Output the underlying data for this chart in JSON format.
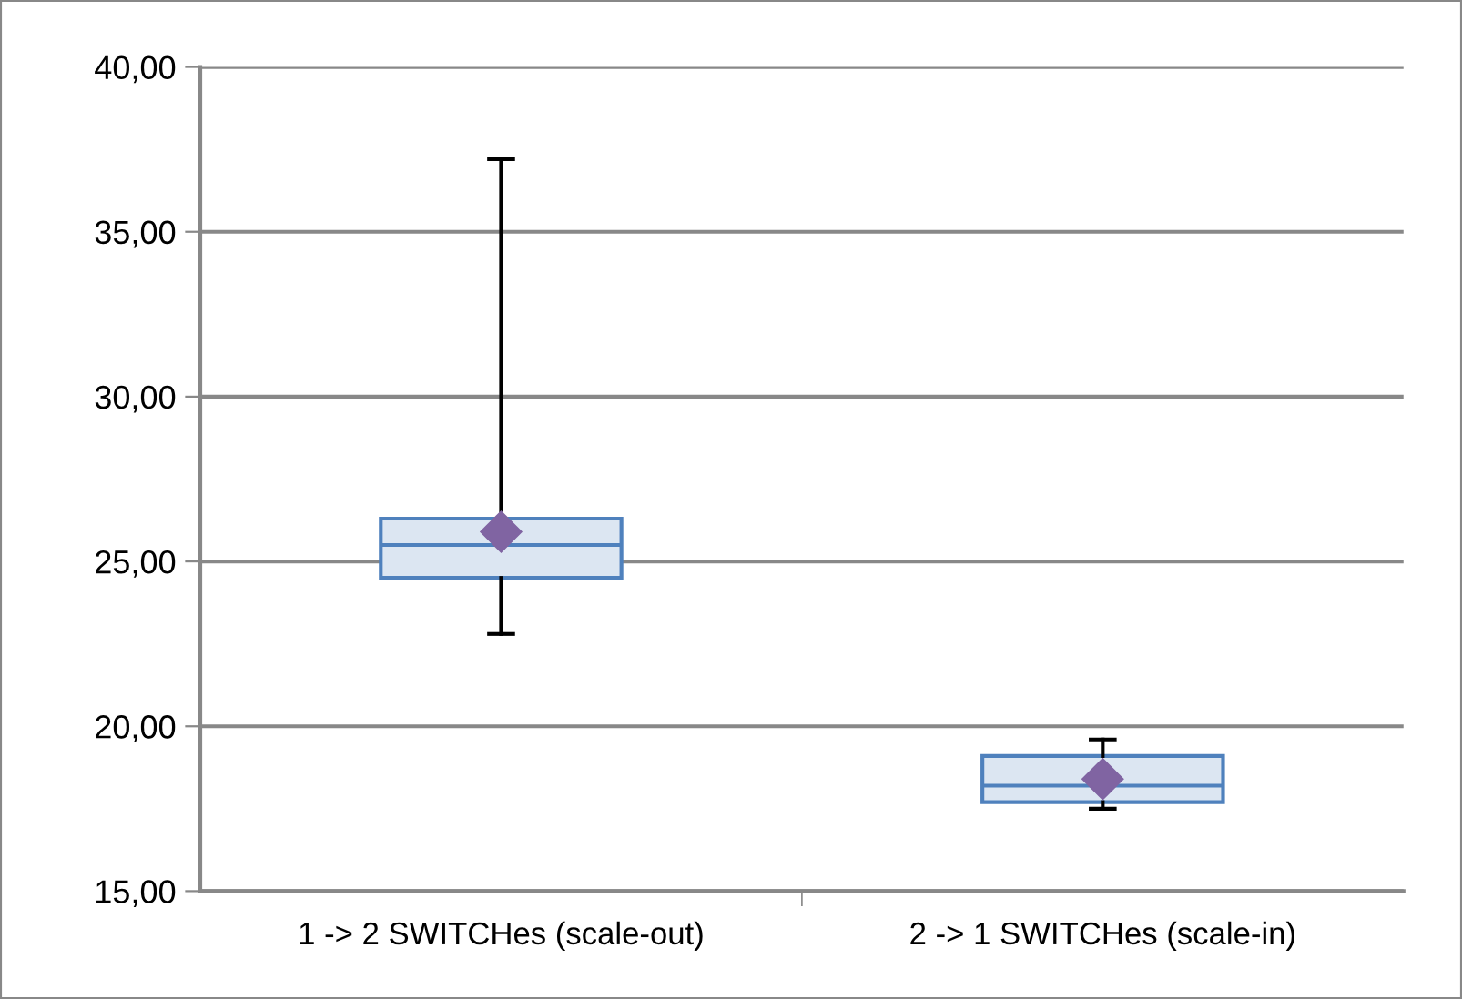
{
  "chart_data": {
    "type": "box",
    "categories": [
      "1 -> 2 SWITCHes (scale-out)",
      "2 -> 1 SWITCHes (scale-in)"
    ],
    "boxes": [
      {
        "low": 22.8,
        "q1": 24.5,
        "median": 25.5,
        "q3": 26.3,
        "high": 37.2,
        "mean": 25.9
      },
      {
        "low": 17.5,
        "q1": 17.7,
        "median": 18.2,
        "q3": 19.1,
        "high": 19.6,
        "mean": 18.4
      }
    ],
    "color": "#4f81bd",
    "marker": "diamond",
    "ylim": [
      15,
      40
    ],
    "yticks": [
      {
        "value": 15,
        "label": "15,00"
      },
      {
        "value": 20,
        "label": "20,00"
      },
      {
        "value": 25,
        "label": "25,00"
      },
      {
        "value": 30,
        "label": "30,00"
      },
      {
        "value": 35,
        "label": "35,00"
      },
      {
        "value": 40,
        "label": "40,00"
      }
    ],
    "grid": "y",
    "legend": false
  }
}
